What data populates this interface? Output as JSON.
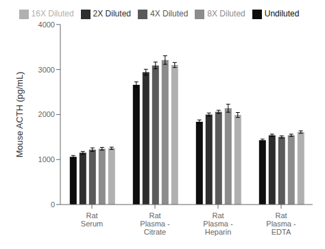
{
  "chart_data": {
    "type": "bar",
    "ylabel": "Mouse ACTH (pg/mL)",
    "categories": [
      "Rat\nSerum",
      "Rat\nPlasma -\nCitrate",
      "Rat\nPlasma -\nHeparin",
      "Rat\nPlasma -\nEDTA"
    ],
    "series": [
      {
        "name": "Undiluted",
        "color": "#0d0d0d",
        "values": [
          1060,
          2660,
          1840,
          1430
        ],
        "errors": [
          30,
          65,
          40,
          25
        ]
      },
      {
        "name": "2X Diluted",
        "color": "#2e2e2e",
        "values": [
          1150,
          2940,
          2000,
          1540
        ],
        "errors": [
          30,
          65,
          35,
          25
        ]
      },
      {
        "name": "4X Diluted",
        "color": "#5a5a5a",
        "values": [
          1220,
          3090,
          2060,
          1500
        ],
        "errors": [
          40,
          75,
          35,
          25
        ]
      },
      {
        "name": "8X Diluted",
        "color": "#8c8c8c",
        "values": [
          1240,
          3210,
          2140,
          1540
        ],
        "errors": [
          30,
          95,
          90,
          25
        ]
      },
      {
        "name": "16X Diluted",
        "color": "#b0b0b0",
        "values": [
          1250,
          3100,
          1990,
          1610
        ],
        "errors": [
          25,
          55,
          55,
          28
        ]
      }
    ],
    "ylim": [
      0,
      4000
    ],
    "yticks": [
      0,
      1000,
      2000,
      3000,
      4000
    ],
    "grid": false,
    "legend": "top"
  }
}
